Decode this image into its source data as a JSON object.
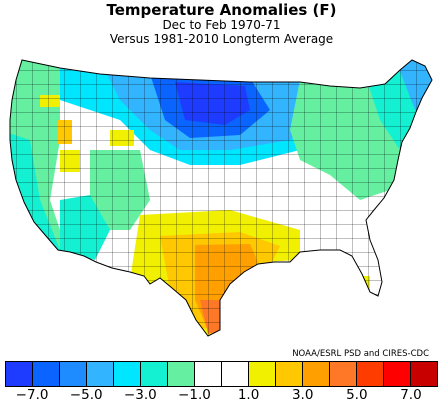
{
  "title": "Temperature Anomalies (F)",
  "subtitle": "Dec to Feb 1970-71",
  "subtitle2": "Versus 1981-2010 Longterm Average",
  "credit": "NOAA/ESRL PSD and CIRES-CDC",
  "legend": {
    "colors": [
      "#1e3cff",
      "#0a64ff",
      "#1e8cff",
      "#32b4ff",
      "#00e6ff",
      "#14f0d2",
      "#64f0a0",
      "#ffffff",
      "#ffffff",
      "#f0f000",
      "#ffc800",
      "#ffa000",
      "#ff7828",
      "#ff3c00",
      "#ff0000",
      "#c80000"
    ],
    "tick_labels": [
      "-7.0",
      "-5.0",
      "-3.0",
      "-1.0",
      "1.0",
      "3.0",
      "5.0",
      "7.0"
    ],
    "tick_values": [
      -7,
      -5,
      -3,
      -1,
      1,
      3,
      5,
      7
    ]
  },
  "map": {
    "region": "Contiguous United States (climate divisions)",
    "pattern_notes": [
      "Strongest cold anomalies (about -5 to -7 F) centered over the Dakotas, Minnesota and Montana",
      "Cool anomalies (-1 to -3 F) across the West Coast, Intermountain West and Northeast",
      "Near-normal conditions over much of the central and southeastern states",
      "Warm anomalies (+1 to +5 F) over Texas, Oklahoma and the Gulf Coast, warmest in south Texas"
    ]
  }
}
